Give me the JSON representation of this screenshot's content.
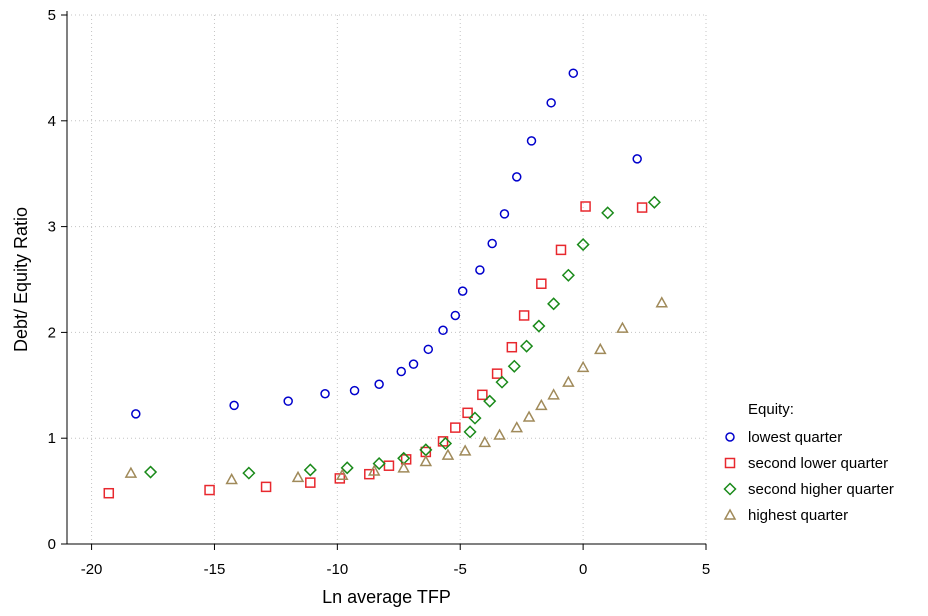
{
  "chart_data": {
    "type": "scatter",
    "xlabel": "Ln average TFP",
    "ylabel": "Debt/ Equity Ratio",
    "xlim": [
      -21,
      5
    ],
    "ylim": [
      0,
      5
    ],
    "xticks": [
      -20,
      -15,
      -10,
      -5,
      0,
      5
    ],
    "yticks": [
      0,
      1,
      2,
      3,
      4,
      5
    ],
    "grid": true,
    "legend": {
      "title": "Equity:",
      "position": "right"
    },
    "series": [
      {
        "name": "lowest quarter",
        "marker": "circle",
        "color": "#0000cc",
        "points": [
          [
            -18.2,
            1.23
          ],
          [
            -14.2,
            1.31
          ],
          [
            -12.0,
            1.35
          ],
          [
            -10.5,
            1.42
          ],
          [
            -9.3,
            1.45
          ],
          [
            -8.3,
            1.51
          ],
          [
            -7.4,
            1.63
          ],
          [
            -6.9,
            1.7
          ],
          [
            -6.3,
            1.84
          ],
          [
            -5.7,
            2.02
          ],
          [
            -5.2,
            2.16
          ],
          [
            -4.9,
            2.39
          ],
          [
            -4.2,
            2.59
          ],
          [
            -3.7,
            2.84
          ],
          [
            -3.2,
            3.12
          ],
          [
            -2.7,
            3.47
          ],
          [
            -2.1,
            3.81
          ],
          [
            -1.3,
            4.17
          ],
          [
            -0.4,
            4.45
          ],
          [
            2.2,
            3.64
          ]
        ]
      },
      {
        "name": "second lower quarter",
        "marker": "square",
        "color": "#e8282e",
        "points": [
          [
            -19.3,
            0.48
          ],
          [
            -15.2,
            0.51
          ],
          [
            -12.9,
            0.54
          ],
          [
            -11.1,
            0.58
          ],
          [
            -9.9,
            0.62
          ],
          [
            -8.7,
            0.66
          ],
          [
            -7.9,
            0.74
          ],
          [
            -7.2,
            0.8
          ],
          [
            -6.4,
            0.87
          ],
          [
            -5.7,
            0.97
          ],
          [
            -5.2,
            1.1
          ],
          [
            -4.7,
            1.24
          ],
          [
            -4.1,
            1.41
          ],
          [
            -3.5,
            1.61
          ],
          [
            -2.9,
            1.86
          ],
          [
            -2.4,
            2.16
          ],
          [
            -1.7,
            2.46
          ],
          [
            -0.9,
            2.78
          ],
          [
            0.1,
            3.19
          ],
          [
            2.4,
            3.18
          ]
        ]
      },
      {
        "name": "second higher quarter",
        "marker": "diamond",
        "color": "#1a8a1a",
        "points": [
          [
            -17.6,
            0.68
          ],
          [
            -13.6,
            0.67
          ],
          [
            -11.1,
            0.7
          ],
          [
            -9.6,
            0.72
          ],
          [
            -8.3,
            0.76
          ],
          [
            -7.3,
            0.81
          ],
          [
            -6.4,
            0.89
          ],
          [
            -5.6,
            0.95
          ],
          [
            -4.6,
            1.06
          ],
          [
            -4.4,
            1.19
          ],
          [
            -3.8,
            1.35
          ],
          [
            -3.3,
            1.53
          ],
          [
            -2.8,
            1.68
          ],
          [
            -2.3,
            1.87
          ],
          [
            -1.8,
            2.06
          ],
          [
            -1.2,
            2.27
          ],
          [
            -0.6,
            2.54
          ],
          [
            0.0,
            2.83
          ],
          [
            1.0,
            3.13
          ],
          [
            2.9,
            3.23
          ]
        ]
      },
      {
        "name": "highest quarter",
        "marker": "triangle",
        "color": "#a08a5a",
        "points": [
          [
            -18.4,
            0.67
          ],
          [
            -14.3,
            0.61
          ],
          [
            -11.6,
            0.63
          ],
          [
            -9.8,
            0.65
          ],
          [
            -8.5,
            0.69
          ],
          [
            -7.3,
            0.72
          ],
          [
            -6.4,
            0.78
          ],
          [
            -5.5,
            0.84
          ],
          [
            -4.8,
            0.88
          ],
          [
            -4.0,
            0.96
          ],
          [
            -3.4,
            1.03
          ],
          [
            -2.7,
            1.1
          ],
          [
            -2.2,
            1.2
          ],
          [
            -1.7,
            1.31
          ],
          [
            -1.2,
            1.41
          ],
          [
            -0.6,
            1.53
          ],
          [
            0.0,
            1.67
          ],
          [
            0.7,
            1.84
          ],
          [
            1.6,
            2.04
          ],
          [
            3.2,
            2.28
          ]
        ]
      }
    ]
  }
}
